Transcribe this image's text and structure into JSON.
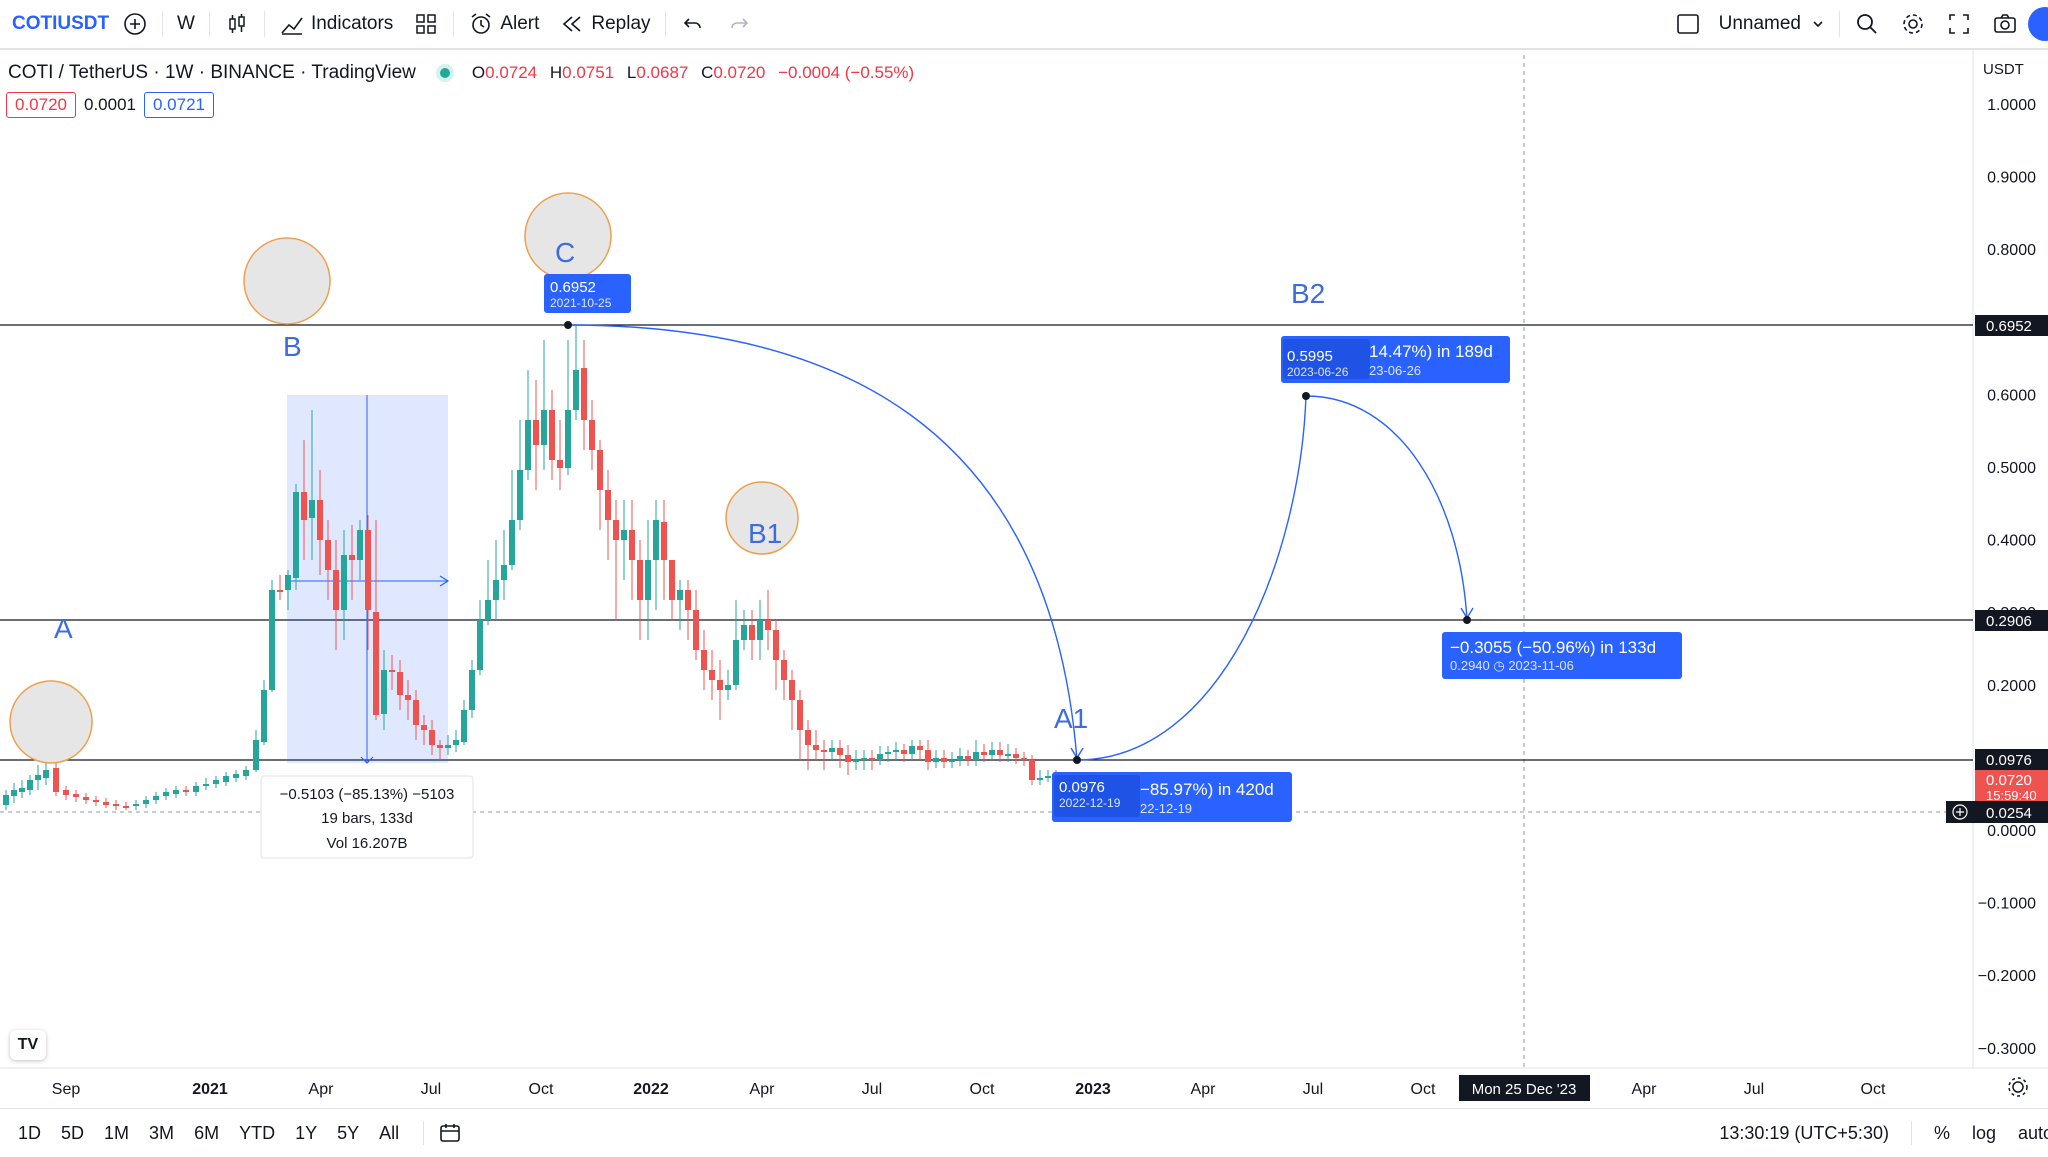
{
  "toolbar": {
    "symbol": "COTIUSDT",
    "interval": "W",
    "indicators": "Indicators",
    "alert": "Alert",
    "replay": "Replay",
    "layout_name": "Unnamed"
  },
  "legend": {
    "title": "COTI / TetherUS · 1W · BINANCE · TradingView",
    "o_label": "O",
    "o": "0.0724",
    "h_label": "H",
    "h": "0.0751",
    "l_label": "L",
    "l": "0.0687",
    "c_label": "C",
    "c": "0.0720",
    "change": "−0.0004 (−0.55%)",
    "bid": "0.0720",
    "spread": "0.0001",
    "ask": "0.0721"
  },
  "price_axis": {
    "currency": "USDT",
    "ticks": [
      "1.0000",
      "0.9000",
      "0.8000",
      "0.7000",
      "0.6000",
      "0.5000",
      "0.4000",
      "0.3000",
      "0.2000",
      "0.1000",
      "0.0000",
      "−0.1000",
      "−0.2000",
      "−0.3000"
    ],
    "tags": {
      "top_line": "0.6952",
      "mid_line": "0.2906",
      "low_line": "0.0976",
      "last": "0.0720",
      "countdown": "15:59:40",
      "crosshair": "0.0254"
    }
  },
  "time_axis": {
    "ticks": [
      "Sep",
      "2021",
      "Apr",
      "Jul",
      "Oct",
      "2022",
      "Apr",
      "Jul",
      "Oct",
      "2023",
      "Apr",
      "Jul",
      "Oct",
      "Apr",
      "Jul",
      "Oct"
    ],
    "crosshair_date": "Mon 25 Dec '23"
  },
  "annotations": {
    "points": [
      "A",
      "B",
      "C",
      "B1",
      "A1",
      "B2"
    ],
    "label_C": {
      "price": "0.6952",
      "date": "2021-10-25"
    },
    "label_B2": {
      "price": "0.5995",
      "date": "2023-06-26",
      "text": "14.47%) in 189d",
      "date2": "23-06-26"
    },
    "label_A1": {
      "price": "0.0976",
      "date": "2022-12-19",
      "text": "−85.97%) in 420d",
      "date2": "22-12-19"
    },
    "label_drop": {
      "text": "−0.3055 (−50.96%) in 133d",
      "sub": "0.2940 ◷ 2023-11-06"
    },
    "range_box": {
      "line1": "−0.5103 (−85.13%) −5103",
      "line2": "19 bars, 133d",
      "line3": "Vol 16.207B"
    }
  },
  "bottom": {
    "ranges": [
      "1D",
      "5D",
      "1M",
      "3M",
      "6M",
      "YTD",
      "1Y",
      "5Y",
      "All"
    ],
    "clock": "13:30:19 (UTC+5:30)",
    "percent": "%",
    "log": "log",
    "auto": "auto"
  },
  "colors": {
    "up": "#26a69a",
    "down": "#ef5350",
    "accent": "#2962ff",
    "label": "#3d6be0"
  }
}
